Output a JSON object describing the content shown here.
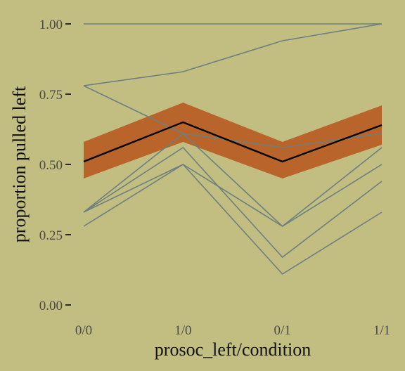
{
  "chart_data": {
    "type": "line",
    "xlabel": "prosoc_left/condition",
    "ylabel": "proportion pulled left",
    "categories": [
      "0/0",
      "1/0",
      "0/1",
      "1/1"
    ],
    "yticks": [
      0.0,
      0.25,
      0.5,
      0.75,
      1.0
    ],
    "ytick_labels": [
      "0.00",
      "0.25",
      "0.50",
      "0.75",
      "1.00"
    ],
    "ylim": [
      0,
      1
    ],
    "grid": false,
    "individual_series": [
      {
        "values": [
          1.0,
          1.0,
          1.0,
          1.0
        ]
      },
      {
        "values": [
          0.78,
          0.83,
          0.94,
          1.0
        ]
      },
      {
        "values": [
          0.78,
          0.61,
          0.56,
          0.61
        ]
      },
      {
        "values": [
          0.33,
          0.61,
          0.28,
          0.56
        ]
      },
      {
        "values": [
          0.33,
          0.5,
          0.28,
          0.5
        ]
      },
      {
        "values": [
          0.33,
          0.56,
          0.17,
          0.44
        ]
      },
      {
        "values": [
          0.28,
          0.5,
          0.11,
          0.33
        ]
      }
    ],
    "mean_series": {
      "values": [
        0.51,
        0.65,
        0.51,
        0.64
      ]
    },
    "interval": {
      "lower": [
        0.45,
        0.58,
        0.45,
        0.57
      ],
      "upper": [
        0.58,
        0.72,
        0.58,
        0.71
      ]
    },
    "colors": {
      "background": "#c2bd80",
      "individual_line": "#6d807e",
      "mean_line": "#000000",
      "interval_band": "#b8642a",
      "tick_mark": "#2a2a2a"
    }
  }
}
